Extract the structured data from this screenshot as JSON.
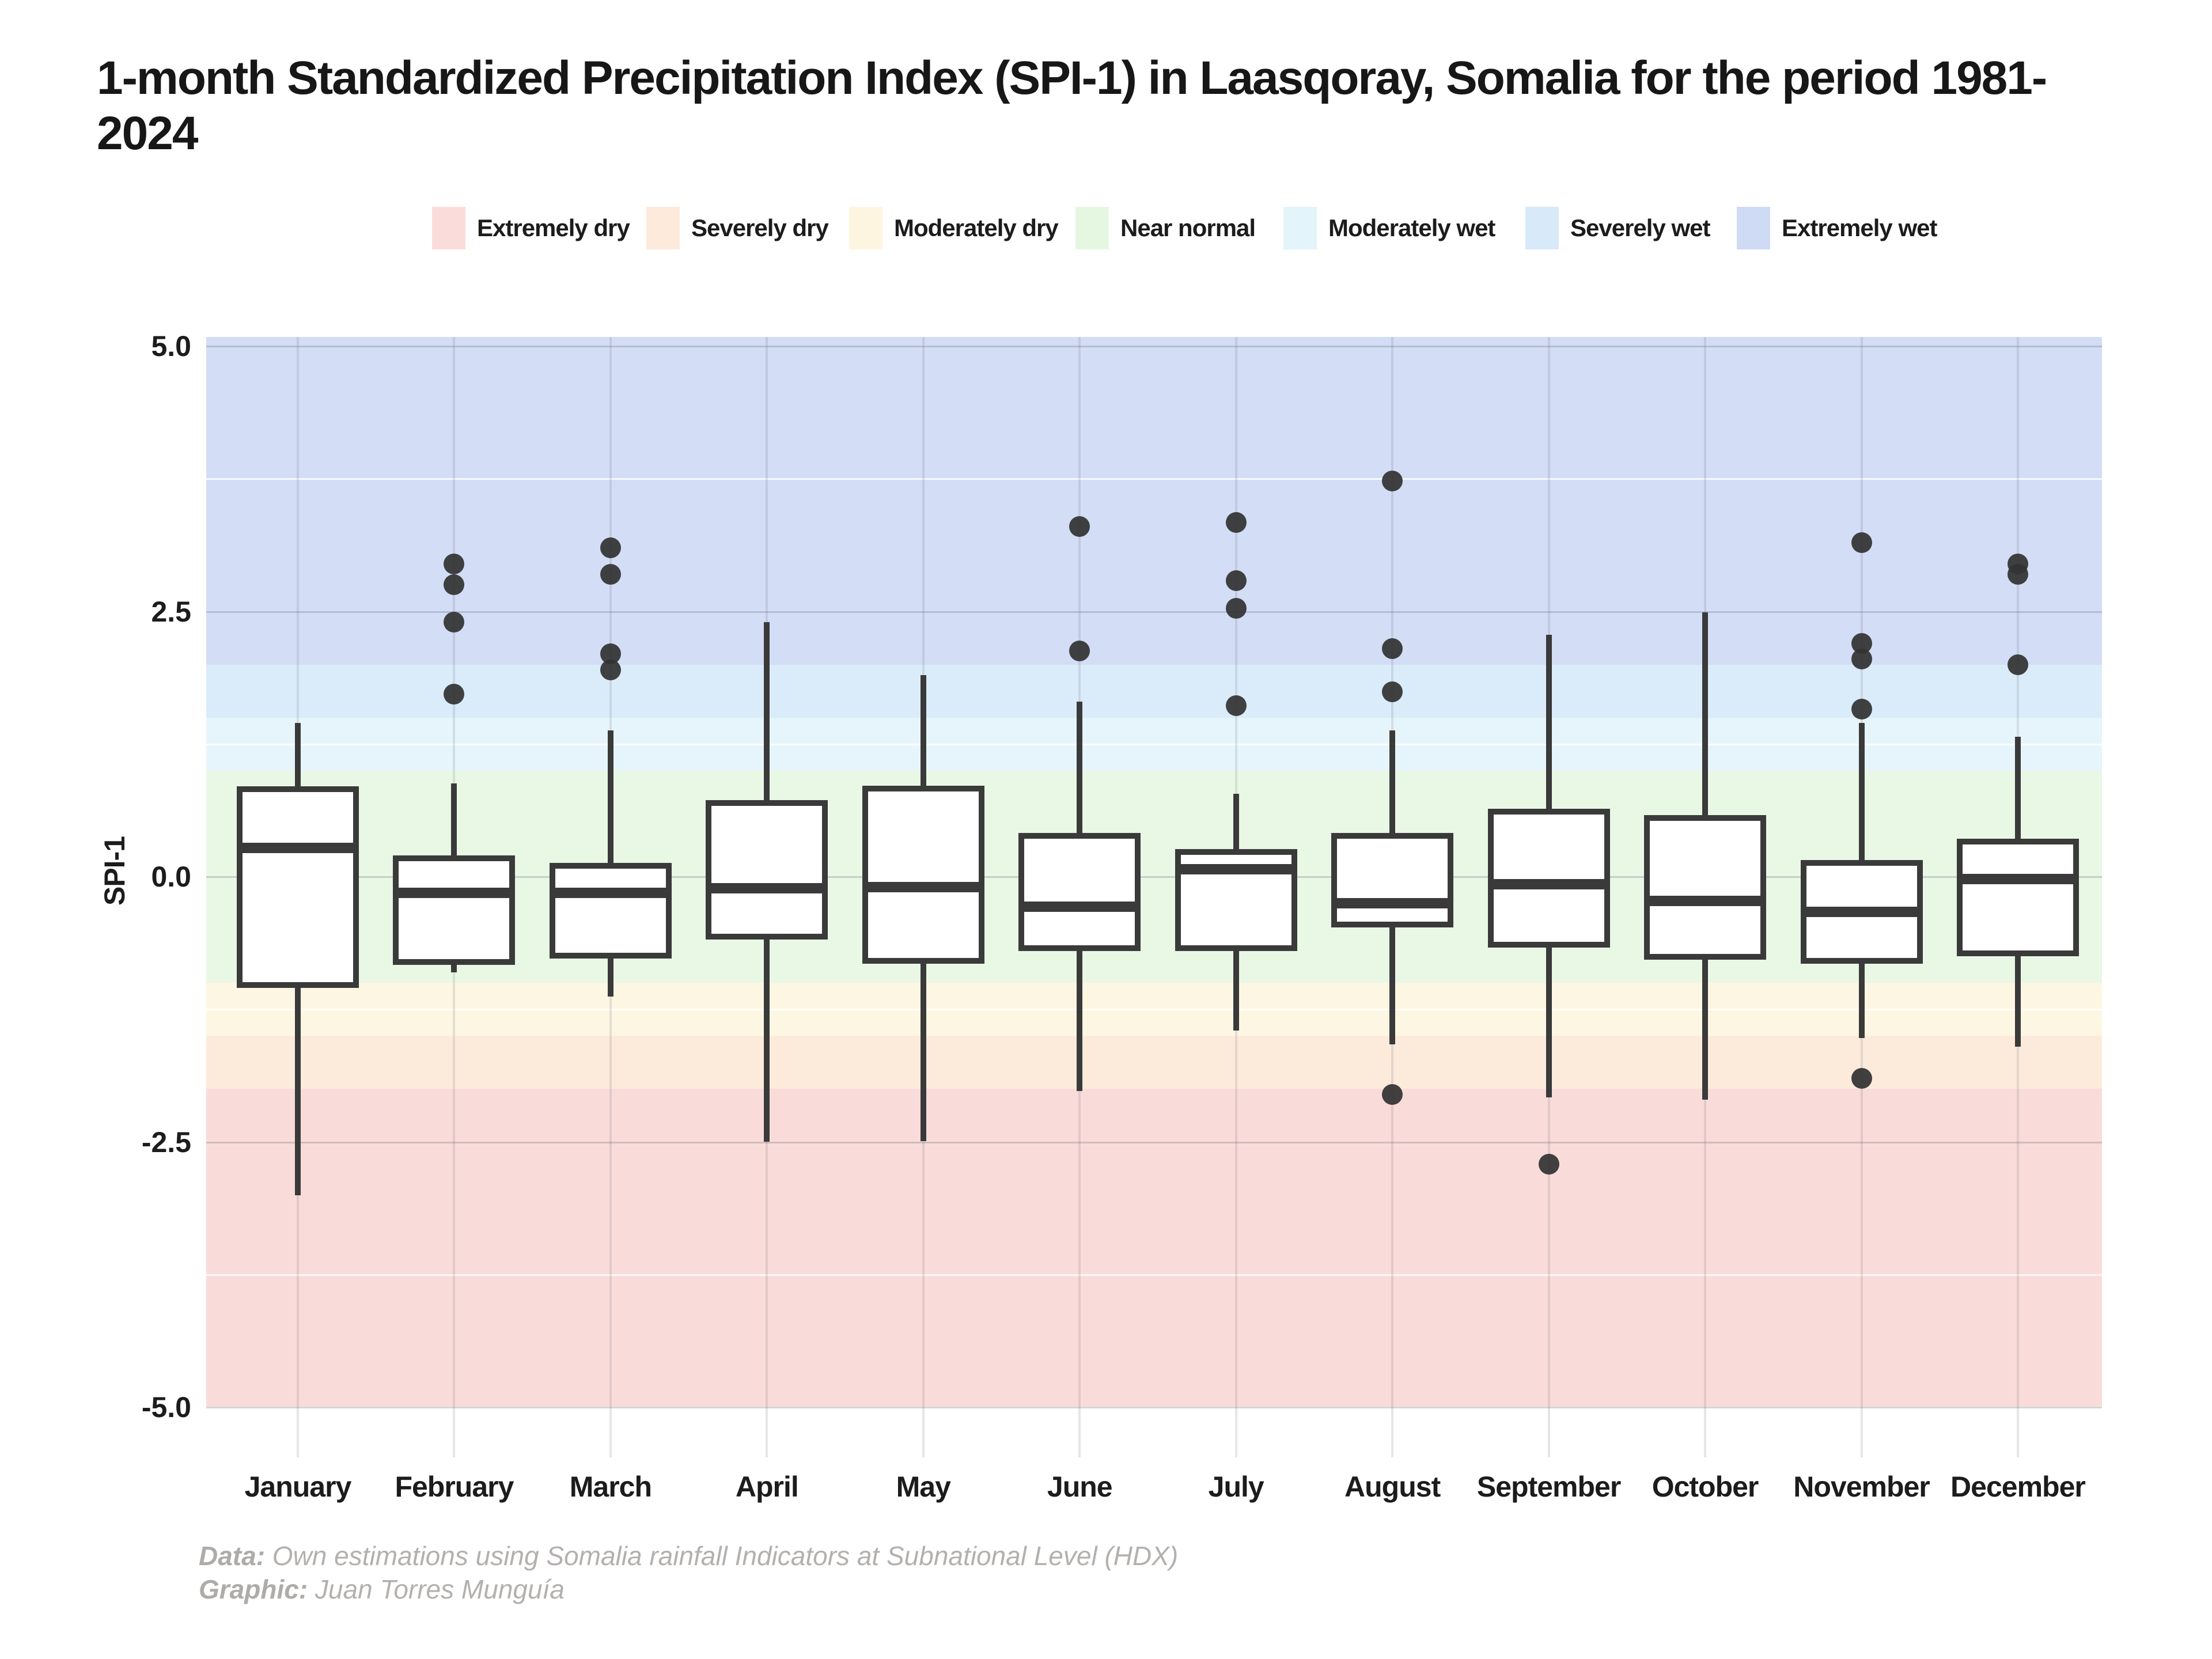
{
  "title": "1-month Standardized Precipitation Index (SPI-1) in Laasqoray, Somalia for the period 1981-2024",
  "legend": {
    "items": [
      {
        "label": "Extremely dry",
        "color": "#fadddb"
      },
      {
        "label": "Severely dry",
        "color": "#fdeadb"
      },
      {
        "label": "Moderately dry",
        "color": "#fdf5e0"
      },
      {
        "label": "Near normal",
        "color": "#e6f7e1"
      },
      {
        "label": "Moderately wet",
        "color": "#e3f4fa"
      },
      {
        "label": "Severely wet",
        "color": "#d8eafa"
      },
      {
        "label": "Extremely wet",
        "color": "#cfdbf4"
      }
    ]
  },
  "y_axis": {
    "label": "SPI-1",
    "tick_labels": [
      "5.0",
      "2.5",
      "0.0",
      "-2.5",
      "-5.0"
    ]
  },
  "footer": {
    "data_prefix": "Data:",
    "data_text": " Own estimations using Somalia rainfall Indicators at Subnational Level (HDX)",
    "graphic_prefix": "Graphic:",
    "graphic_text": " Juan Torres Munguía"
  },
  "chart_data": {
    "type": "boxplot",
    "title": "1-month Standardized Precipitation Index (SPI-1) in Laasqoray, Somalia for the period 1981-2024",
    "ylabel": "SPI-1",
    "ylim": [
      -5.0,
      5.0
    ],
    "y_major_ticks": [
      5.0,
      2.5,
      0.0,
      -2.5,
      -5.0
    ],
    "y_minor_ticks": [
      3.75,
      1.25,
      -1.25,
      -3.75
    ],
    "categories": [
      "January",
      "February",
      "March",
      "April",
      "May",
      "June",
      "July",
      "August",
      "September",
      "October",
      "November",
      "December"
    ],
    "series": [
      {
        "month": "January",
        "whisker_low": -3.0,
        "q1": -1.05,
        "median": 0.27,
        "q3": 0.85,
        "whisker_high": 1.45,
        "outliers": []
      },
      {
        "month": "February",
        "whisker_low": -0.9,
        "q1": -0.83,
        "median": -0.15,
        "q3": 0.2,
        "whisker_high": 0.88,
        "outliers": [
          2.95,
          2.75,
          2.4,
          1.72
        ]
      },
      {
        "month": "March",
        "whisker_low": -1.13,
        "q1": -0.77,
        "median": -0.15,
        "q3": 0.13,
        "whisker_high": 1.38,
        "outliers": [
          3.1,
          2.85,
          2.1,
          1.95
        ]
      },
      {
        "month": "April",
        "whisker_low": -2.5,
        "q1": -0.59,
        "median": -0.11,
        "q3": 0.72,
        "whisker_high": 2.4,
        "outliers": []
      },
      {
        "month": "May",
        "whisker_low": -2.49,
        "q1": -0.82,
        "median": -0.1,
        "q3": 0.86,
        "whisker_high": 1.9,
        "outliers": []
      },
      {
        "month": "June",
        "whisker_low": -2.02,
        "q1": -0.7,
        "median": -0.28,
        "q3": 0.41,
        "whisker_high": 1.65,
        "outliers": [
          3.3,
          2.13
        ]
      },
      {
        "month": "July",
        "whisker_low": -1.45,
        "q1": -0.7,
        "median": 0.07,
        "q3": 0.26,
        "whisker_high": 0.78,
        "outliers": [
          3.34,
          2.79,
          2.53,
          1.61
        ]
      },
      {
        "month": "August",
        "whisker_low": -1.58,
        "q1": -0.48,
        "median": -0.25,
        "q3": 0.41,
        "whisker_high": 1.38,
        "outliers": [
          3.73,
          2.15,
          1.74,
          -2.05
        ]
      },
      {
        "month": "September",
        "whisker_low": -2.08,
        "q1": -0.67,
        "median": -0.07,
        "q3": 0.64,
        "whisker_high": 2.28,
        "outliers": [
          -2.71
        ]
      },
      {
        "month": "October",
        "whisker_low": -2.1,
        "q1": -0.78,
        "median": -0.23,
        "q3": 0.58,
        "whisker_high": 2.49,
        "outliers": []
      },
      {
        "month": "November",
        "whisker_low": -1.52,
        "q1": -0.82,
        "median": -0.33,
        "q3": 0.16,
        "whisker_high": 1.45,
        "outliers": [
          3.15,
          2.2,
          2.05,
          1.58,
          -1.9
        ]
      },
      {
        "month": "December",
        "whisker_low": -1.6,
        "q1": -0.75,
        "median": -0.02,
        "q3": 0.36,
        "whisker_high": 1.32,
        "outliers": [
          2.95,
          2.85,
          2.0
        ]
      }
    ],
    "bands": [
      {
        "label": "Extremely wet",
        "from": 2.0,
        "to": 5.1,
        "color": "#d3ddf5"
      },
      {
        "label": "Severely wet",
        "from": 1.5,
        "to": 2.0,
        "color": "#daecfa"
      },
      {
        "label": "Moderately wet",
        "from": 1.0,
        "to": 1.5,
        "color": "#e6f5fb"
      },
      {
        "label": "Near normal",
        "from": -1.0,
        "to": 1.0,
        "color": "#e8f8e5"
      },
      {
        "label": "Moderately dry",
        "from": -1.5,
        "to": -1.0,
        "color": "#fdf6e2"
      },
      {
        "label": "Severely dry",
        "from": -2.0,
        "to": -1.5,
        "color": "#fcebdb"
      },
      {
        "label": "Extremely dry",
        "from": -5.0,
        "to": -2.0,
        "color": "#f9dcd9"
      }
    ],
    "legend_position": "top",
    "grid": true
  }
}
